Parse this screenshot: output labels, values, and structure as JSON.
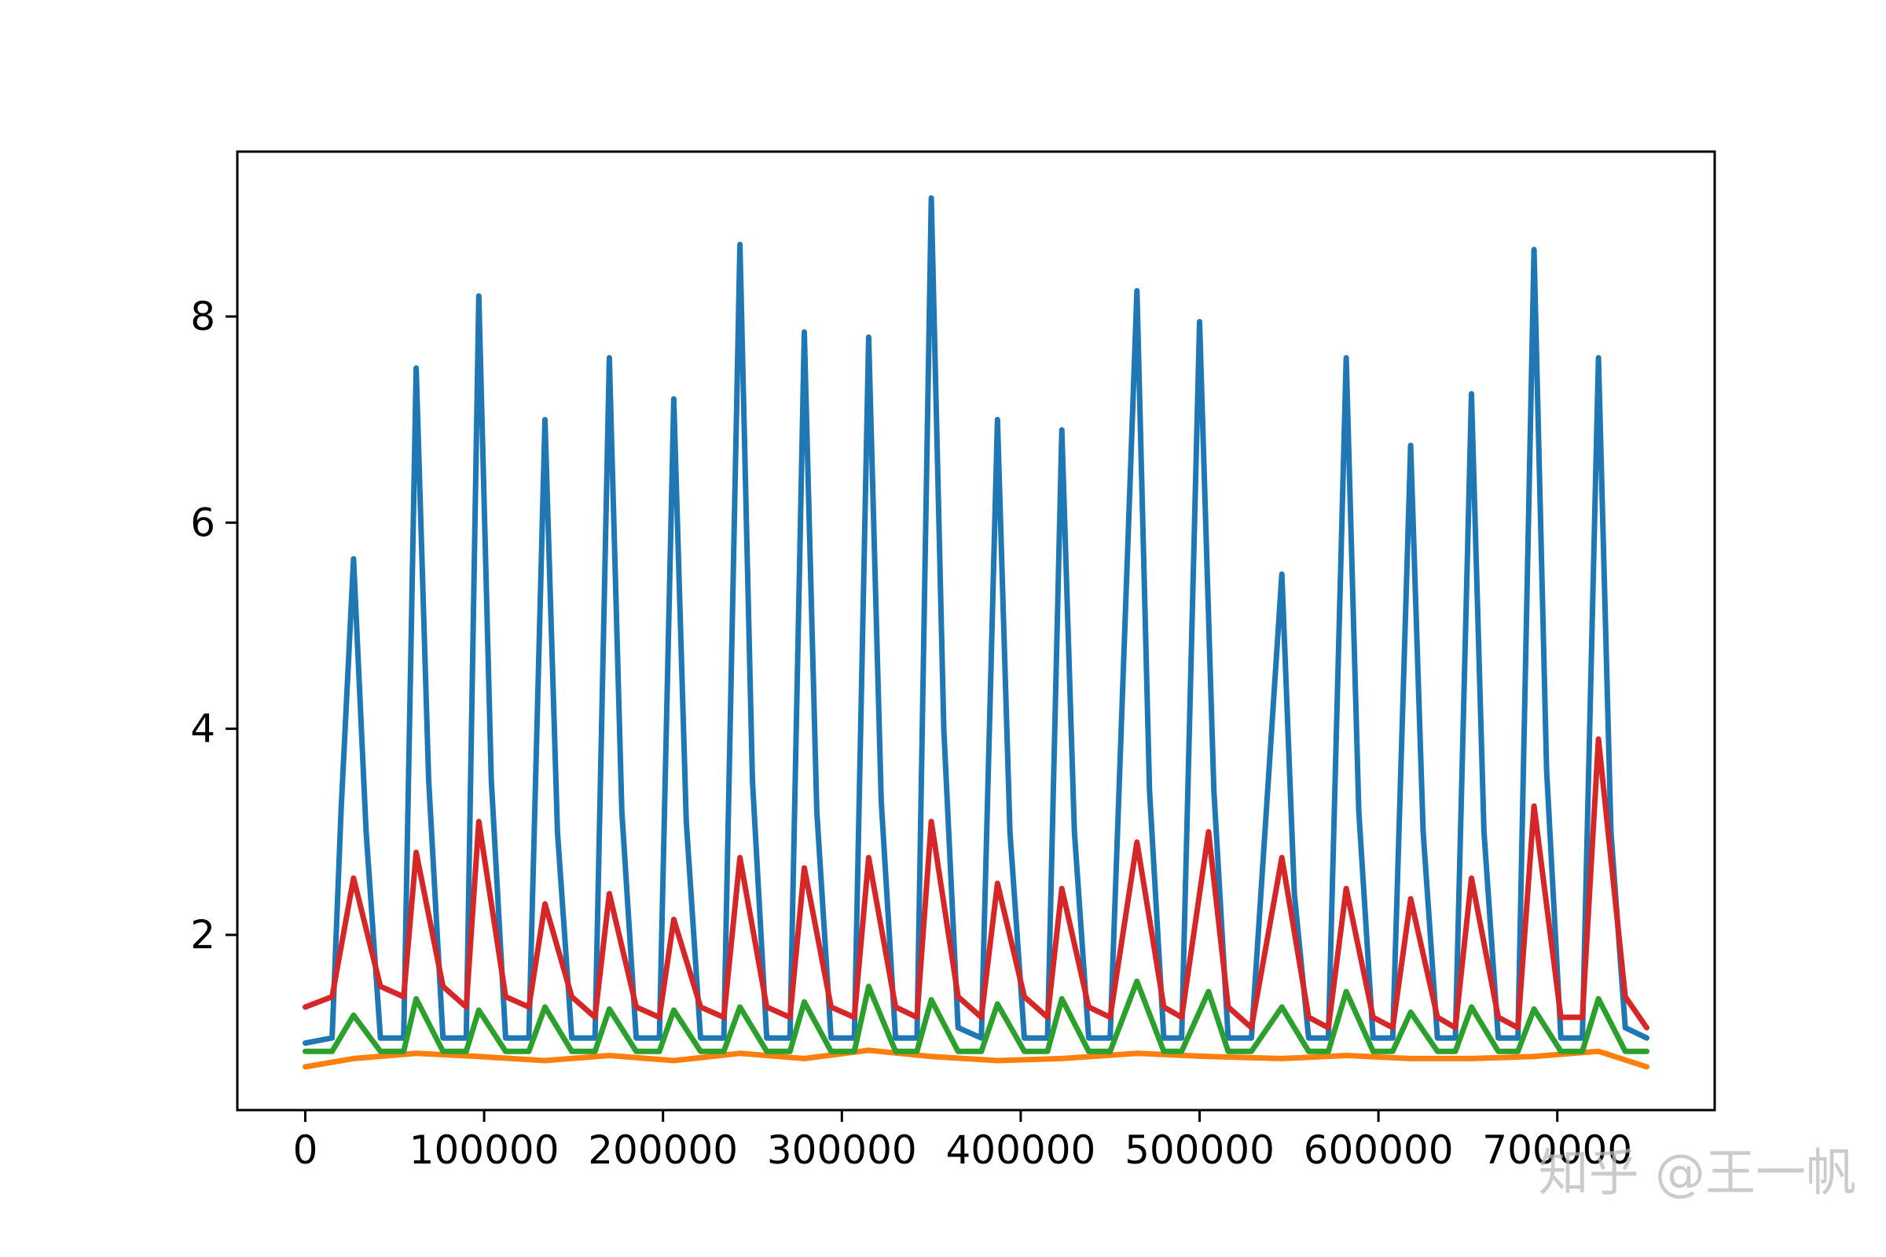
{
  "chart_data": {
    "type": "line",
    "title": "",
    "xlabel": "",
    "ylabel": "",
    "xlim": [
      -38000,
      788000
    ],
    "ylim": [
      0.3,
      9.6
    ],
    "xticks": [
      0,
      100000,
      200000,
      300000,
      400000,
      500000,
      600000,
      700000
    ],
    "xtick_labels": [
      "0",
      "100000",
      "200000",
      "300000",
      "400000",
      "500000",
      "600000",
      "700000"
    ],
    "yticks": [
      2,
      4,
      6,
      8
    ],
    "ytick_labels": [
      "2",
      "4",
      "6",
      "8"
    ],
    "grid": false,
    "legend": "none",
    "series": [
      {
        "color": "#1f77b4",
        "x": [
          0,
          15000,
          20000,
          27000,
          34000,
          42000,
          55000,
          62000,
          69000,
          77000,
          90000,
          97000,
          104000,
          112000,
          125000,
          134000,
          141000,
          149000,
          162000,
          170000,
          177000,
          185000,
          198000,
          206000,
          213000,
          221000,
          234000,
          243000,
          250000,
          258000,
          271000,
          279000,
          286000,
          294000,
          307000,
          315000,
          322000,
          330000,
          342000,
          350000,
          357000,
          365000,
          378000,
          387000,
          394000,
          402000,
          415000,
          423000,
          430000,
          438000,
          450000,
          465000,
          472000,
          480000,
          490000,
          500000,
          508000,
          516000,
          529000,
          546000,
          553000,
          561000,
          572000,
          582000,
          589000,
          597000,
          608000,
          618000,
          625000,
          633000,
          643000,
          652000,
          659000,
          667000,
          678000,
          687000,
          694000,
          702000,
          714000,
          723000,
          730000,
          738000,
          750000
        ],
        "y": [
          0.95,
          1.0,
          3.2,
          5.65,
          3.0,
          1.0,
          1.0,
          7.5,
          3.5,
          1.0,
          1.0,
          8.2,
          3.5,
          1.0,
          1.0,
          7.0,
          3.0,
          1.0,
          1.0,
          7.6,
          3.2,
          1.0,
          1.0,
          7.2,
          3.1,
          1.0,
          1.0,
          8.7,
          3.5,
          1.0,
          1.0,
          7.85,
          3.2,
          1.0,
          1.0,
          7.8,
          3.3,
          1.0,
          1.0,
          9.15,
          4.0,
          1.1,
          1.0,
          7.0,
          3.0,
          1.0,
          1.0,
          6.9,
          3.0,
          1.0,
          1.0,
          8.25,
          3.4,
          1.0,
          1.0,
          7.95,
          3.4,
          1.0,
          1.0,
          5.5,
          2.4,
          1.0,
          1.0,
          7.6,
          3.2,
          1.0,
          1.0,
          6.75,
          3.0,
          1.0,
          1.0,
          7.25,
          3.0,
          1.0,
          1.0,
          8.65,
          3.6,
          1.0,
          1.0,
          7.6,
          3.0,
          1.1,
          1.0
        ]
      },
      {
        "color": "#ff7f0e",
        "x": [
          0,
          27000,
          62000,
          97000,
          134000,
          170000,
          206000,
          243000,
          279000,
          315000,
          350000,
          387000,
          423000,
          465000,
          505000,
          546000,
          582000,
          618000,
          652000,
          687000,
          723000,
          750000
        ],
        "y": [
          0.72,
          0.8,
          0.85,
          0.82,
          0.78,
          0.83,
          0.78,
          0.85,
          0.8,
          0.88,
          0.82,
          0.78,
          0.8,
          0.85,
          0.82,
          0.8,
          0.83,
          0.8,
          0.8,
          0.82,
          0.87,
          0.72
        ]
      },
      {
        "color": "#2ca02c",
        "x": [
          0,
          15000,
          27000,
          42000,
          55000,
          62000,
          77000,
          90000,
          97000,
          112000,
          125000,
          134000,
          149000,
          162000,
          170000,
          185000,
          198000,
          206000,
          221000,
          234000,
          243000,
          258000,
          271000,
          279000,
          294000,
          307000,
          315000,
          330000,
          342000,
          350000,
          365000,
          378000,
          387000,
          402000,
          415000,
          423000,
          438000,
          450000,
          465000,
          480000,
          490000,
          505000,
          516000,
          529000,
          546000,
          561000,
          572000,
          582000,
          597000,
          608000,
          618000,
          633000,
          643000,
          652000,
          667000,
          678000,
          687000,
          702000,
          714000,
          723000,
          738000,
          750000
        ],
        "y": [
          0.87,
          0.87,
          1.22,
          0.87,
          0.87,
          1.38,
          0.87,
          0.87,
          1.27,
          0.87,
          0.87,
          1.3,
          0.87,
          0.87,
          1.28,
          0.87,
          0.87,
          1.27,
          0.87,
          0.87,
          1.3,
          0.87,
          0.87,
          1.35,
          0.87,
          0.87,
          1.5,
          0.87,
          0.87,
          1.37,
          0.87,
          0.87,
          1.33,
          0.87,
          0.87,
          1.38,
          0.87,
          0.87,
          1.55,
          0.87,
          0.87,
          1.45,
          0.87,
          0.87,
          1.3,
          0.87,
          0.87,
          1.45,
          0.87,
          0.87,
          1.25,
          0.87,
          0.87,
          1.3,
          0.87,
          0.87,
          1.28,
          0.87,
          0.87,
          1.38,
          0.87,
          0.87
        ]
      },
      {
        "color": "#d62728",
        "x": [
          0,
          15000,
          27000,
          42000,
          55000,
          62000,
          77000,
          90000,
          97000,
          112000,
          125000,
          134000,
          149000,
          162000,
          170000,
          185000,
          198000,
          206000,
          221000,
          234000,
          243000,
          258000,
          271000,
          279000,
          294000,
          307000,
          315000,
          330000,
          342000,
          350000,
          365000,
          378000,
          387000,
          402000,
          415000,
          423000,
          438000,
          450000,
          465000,
          480000,
          490000,
          505000,
          516000,
          529000,
          546000,
          561000,
          572000,
          582000,
          597000,
          608000,
          618000,
          633000,
          643000,
          652000,
          667000,
          678000,
          687000,
          702000,
          714000,
          723000,
          738000,
          750000
        ],
        "y": [
          1.3,
          1.4,
          2.55,
          1.5,
          1.4,
          2.8,
          1.5,
          1.3,
          3.1,
          1.4,
          1.3,
          2.3,
          1.4,
          1.2,
          2.4,
          1.3,
          1.2,
          2.15,
          1.3,
          1.2,
          2.75,
          1.3,
          1.2,
          2.65,
          1.3,
          1.2,
          2.75,
          1.3,
          1.2,
          3.1,
          1.4,
          1.2,
          2.5,
          1.4,
          1.2,
          2.45,
          1.3,
          1.2,
          2.9,
          1.3,
          1.2,
          3.0,
          1.3,
          1.1,
          2.75,
          1.2,
          1.1,
          2.45,
          1.2,
          1.1,
          2.35,
          1.2,
          1.1,
          2.55,
          1.2,
          1.1,
          3.25,
          1.2,
          1.2,
          3.9,
          1.4,
          1.1
        ]
      }
    ]
  },
  "watermark": {
    "text": "知乎 @王一帆"
  }
}
